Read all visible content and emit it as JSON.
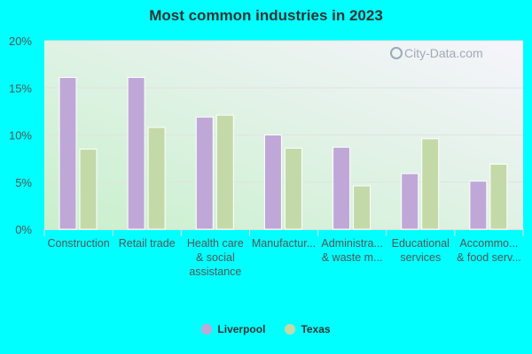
{
  "chart_data": {
    "type": "bar",
    "title": "Most common industries in 2023",
    "categories": [
      [
        "Construction"
      ],
      [
        "Retail trade"
      ],
      [
        "Health care",
        "& social",
        "assistance"
      ],
      [
        "Manufactur..."
      ],
      [
        "Administra...",
        "& waste m..."
      ],
      [
        "Educational",
        "services"
      ],
      [
        "Accommo...",
        "& food serv..."
      ]
    ],
    "series": [
      {
        "name": "Liverpool",
        "color": "#bfa8d8",
        "values": [
          16.1,
          16.1,
          11.9,
          10.0,
          8.7,
          5.9,
          5.1
        ]
      },
      {
        "name": "Texas",
        "color": "#c4d9a8",
        "values": [
          8.5,
          10.8,
          12.1,
          8.6,
          4.6,
          9.6,
          6.9
        ]
      }
    ],
    "yticks": [
      "0%",
      "5%",
      "10%",
      "15%",
      "20%"
    ],
    "ylim": [
      0,
      20
    ],
    "grid": true,
    "legend": "bottom",
    "xlabel": "",
    "ylabel": ""
  },
  "watermark": "City-Data.com"
}
